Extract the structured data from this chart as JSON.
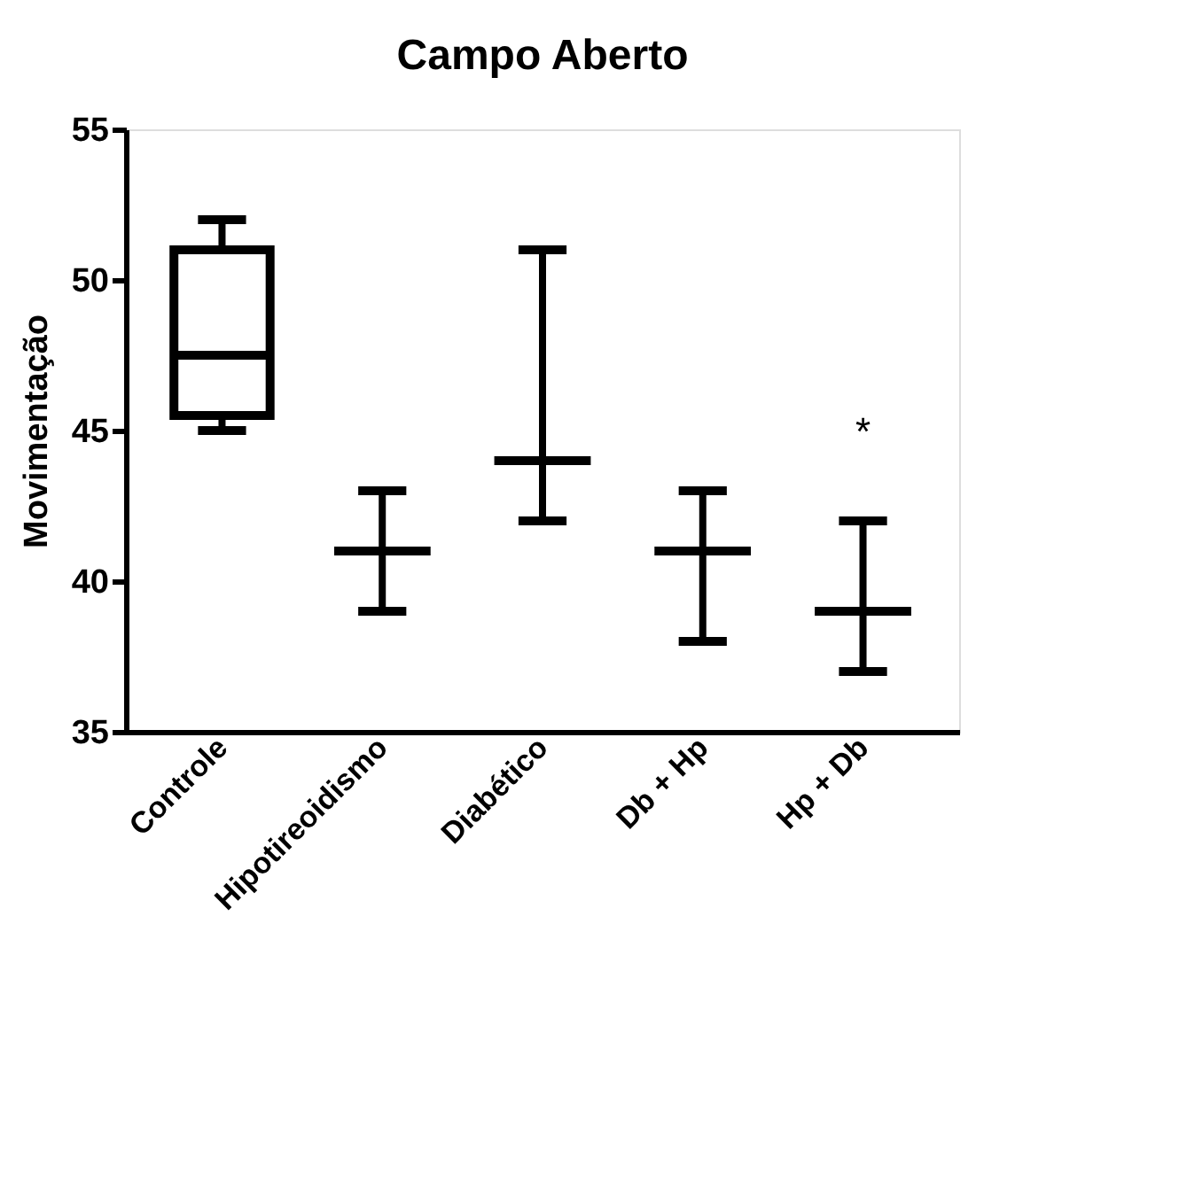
{
  "chart_data": {
    "type": "box",
    "title": "Campo Aberto",
    "ylabel": "Movimentação",
    "categories": [
      "Controle",
      "Hipotireoidismo",
      "Diabético",
      "Db + Hp",
      "Hp + Db"
    ],
    "boxes": [
      {
        "low": 45,
        "q1": 45.5,
        "median": 47.5,
        "q3": 51,
        "high": 52
      },
      {
        "low": 39,
        "q1": 41,
        "median": 41,
        "q3": 41,
        "high": 43
      },
      {
        "low": 42,
        "q1": 44,
        "median": 44,
        "q3": 44,
        "high": 51
      },
      {
        "low": 38,
        "q1": 41,
        "median": 41,
        "q3": 41,
        "high": 43
      },
      {
        "low": 37,
        "q1": 39,
        "median": 39,
        "q3": 39,
        "high": 42
      }
    ],
    "ylim": [
      35,
      55
    ],
    "yticks": [
      35,
      40,
      45,
      50,
      55
    ],
    "grid": false,
    "annotations": [
      "*"
    ]
  }
}
